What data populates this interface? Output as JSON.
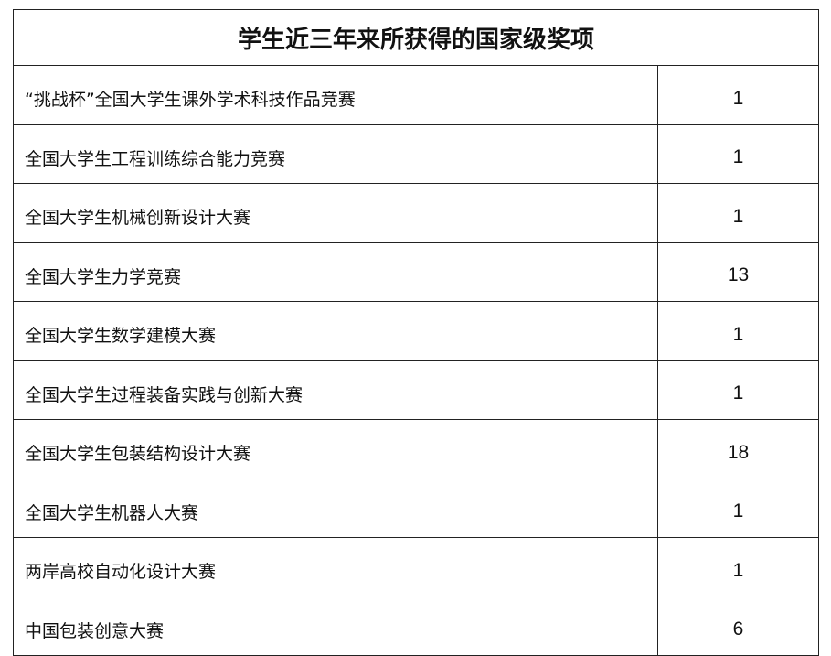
{
  "title": "学生近三年来所获得的国家级奖项",
  "rows": [
    {
      "name": "“挑战杯”全国大学生课外学术科技作品竞赛",
      "count": "1"
    },
    {
      "name": "全国大学生工程训练综合能力竞赛",
      "count": "1"
    },
    {
      "name": "全国大学生机械创新设计大赛",
      "count": "1"
    },
    {
      "name": "全国大学生力学竞赛",
      "count": "13"
    },
    {
      "name": "全国大学生数学建模大赛",
      "count": "1"
    },
    {
      "name": "全国大学生过程装备实践与创新大赛",
      "count": "1"
    },
    {
      "name": "全国大学生包装结构设计大赛",
      "count": "18"
    },
    {
      "name": "全国大学生机器人大赛",
      "count": "1"
    },
    {
      "name": "两岸高校自动化设计大赛",
      "count": "1"
    },
    {
      "name": "中国包装创意大赛",
      "count": "6"
    }
  ]
}
